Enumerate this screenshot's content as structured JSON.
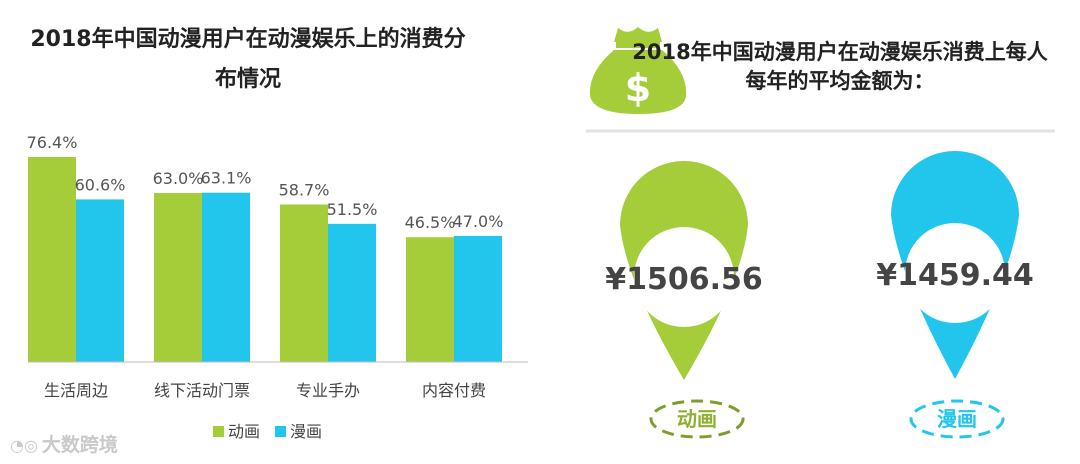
{
  "chart_data": {
    "type": "bar",
    "title": "2018年中国动漫用户在动漫娱乐上的消费分布情况",
    "categories": [
      "生活周边",
      "线下活动门票",
      "专业手办",
      "内容付费"
    ],
    "series": [
      {
        "name": "动画",
        "values": [
          76.4,
          63.0,
          58.7,
          46.5
        ],
        "labels": [
          "76.4%",
          "63.0%",
          "58.7%",
          "46.5%"
        ]
      },
      {
        "name": "漫画",
        "values": [
          60.6,
          63.1,
          51.5,
          47.0
        ],
        "labels": [
          "60.6%",
          "63.1%",
          "51.5%",
          "47.0%"
        ]
      }
    ],
    "ylim": [
      0,
      76.4
    ],
    "grid": false,
    "legend_position": "bottom"
  },
  "colors": {
    "anime": "#a4cd39",
    "comic": "#22c5ec"
  },
  "spending": {
    "title": "2018年中国动漫用户在动漫娱乐消费上每人每年的平均金额为：",
    "icon": "money-bag-icon",
    "pins": [
      {
        "value": "¥1506.56",
        "label": "动画"
      },
      {
        "value": "¥1459.44",
        "label": "漫画"
      }
    ]
  },
  "watermark": "大数跨境"
}
